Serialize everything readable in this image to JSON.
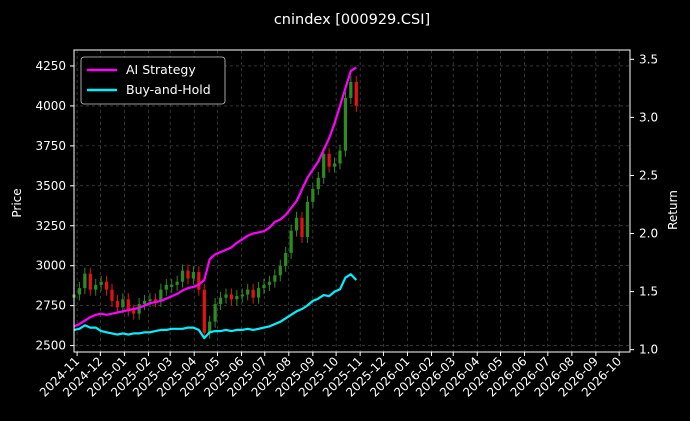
{
  "chart_data": {
    "type": "line",
    "title": "cnindex [000929.CSI]",
    "ylabel": "Price",
    "ylabel_right": "Return",
    "xlabel": "",
    "grid": true,
    "legend_position": "top-left",
    "ylim": [
      2460,
      4350
    ],
    "ylim_right": [
      0.98,
      3.58
    ],
    "yticks": [
      2500,
      2750,
      3000,
      3250,
      3500,
      3750,
      4000,
      4250
    ],
    "yticks_right": [
      1.0,
      1.5,
      2.0,
      2.5,
      3.0,
      3.5
    ],
    "xticks": [
      "2024-11",
      "2024-12",
      "2025-01",
      "2025-02",
      "2025-03",
      "2025-04",
      "2025-05",
      "2025-06",
      "2025-07",
      "2025-08",
      "2025-09",
      "2025-10",
      "2025-11",
      "2025-12",
      "2026-01",
      "2026-02",
      "2026-03",
      "2026-04",
      "2026-05",
      "2026-06",
      "2026-07",
      "2026-08",
      "2026-09",
      "2026-10"
    ],
    "colors": {
      "up": "#2e8b20",
      "down": "#e01414",
      "ai": "#ff00ff",
      "bh": "#00f0ff",
      "grid": "#555555"
    },
    "price": {
      "name": "Price",
      "x": [
        "2024-10-28",
        "2024-11-04",
        "2024-11-11",
        "2024-11-18",
        "2024-11-25",
        "2024-12-02",
        "2024-12-09",
        "2024-12-16",
        "2024-12-23",
        "2024-12-30",
        "2025-01-06",
        "2025-01-13",
        "2025-01-20",
        "2025-01-27",
        "2025-02-03",
        "2025-02-10",
        "2025-02-17",
        "2025-02-24",
        "2025-03-03",
        "2025-03-10",
        "2025-03-17",
        "2025-03-24",
        "2025-03-31",
        "2025-04-07",
        "2025-04-14",
        "2025-04-21",
        "2025-04-28",
        "2025-05-05",
        "2025-05-12",
        "2025-05-19",
        "2025-05-26",
        "2025-06-02",
        "2025-06-09",
        "2025-06-16",
        "2025-06-23",
        "2025-06-30",
        "2025-07-07",
        "2025-07-14",
        "2025-07-21",
        "2025-07-28",
        "2025-08-04",
        "2025-08-11",
        "2025-08-18",
        "2025-08-25",
        "2025-09-01",
        "2025-09-08",
        "2025-09-15",
        "2025-09-22",
        "2025-09-29",
        "2025-10-06",
        "2025-10-13",
        "2025-10-20",
        "2025-10-27"
      ],
      "values": [
        2820,
        2860,
        2950,
        2850,
        2880,
        2900,
        2850,
        2780,
        2740,
        2790,
        2720,
        2700,
        2760,
        2780,
        2790,
        2780,
        2850,
        2880,
        2880,
        2900,
        2970,
        2920,
        2960,
        2850,
        2580,
        2650,
        2760,
        2800,
        2820,
        2790,
        2810,
        2820,
        2850,
        2800,
        2860,
        2880,
        2900,
        2940,
        3000,
        3080,
        3220,
        3300,
        3180,
        3400,
        3480,
        3550,
        3700,
        3620,
        3640,
        3720,
        4050,
        4150,
        4000
      ]
    },
    "series": [
      {
        "name": "AI Strategy",
        "x": [
          "2024-10-28",
          "2024-11-04",
          "2024-11-11",
          "2024-11-18",
          "2024-11-25",
          "2024-12-02",
          "2024-12-09",
          "2024-12-16",
          "2024-12-23",
          "2024-12-30",
          "2025-01-06",
          "2025-01-13",
          "2025-01-20",
          "2025-01-27",
          "2025-02-03",
          "2025-02-10",
          "2025-02-17",
          "2025-02-24",
          "2025-03-03",
          "2025-03-10",
          "2025-03-17",
          "2025-03-24",
          "2025-03-31",
          "2025-04-07",
          "2025-04-14",
          "2025-04-21",
          "2025-04-28",
          "2025-05-05",
          "2025-05-12",
          "2025-05-19",
          "2025-05-26",
          "2025-06-02",
          "2025-06-09",
          "2025-06-16",
          "2025-06-23",
          "2025-06-30",
          "2025-07-07",
          "2025-07-14",
          "2025-07-21",
          "2025-07-28",
          "2025-08-04",
          "2025-08-11",
          "2025-08-18",
          "2025-08-25",
          "2025-09-01",
          "2025-09-08",
          "2025-09-15",
          "2025-09-22",
          "2025-09-29",
          "2025-10-06",
          "2025-10-13",
          "2025-10-20",
          "2025-10-27"
        ],
        "values": [
          1.2,
          1.22,
          1.25,
          1.28,
          1.3,
          1.31,
          1.3,
          1.31,
          1.32,
          1.33,
          1.34,
          1.35,
          1.36,
          1.38,
          1.4,
          1.41,
          1.42,
          1.44,
          1.46,
          1.48,
          1.51,
          1.53,
          1.54,
          1.56,
          1.6,
          1.78,
          1.82,
          1.84,
          1.86,
          1.88,
          1.92,
          1.95,
          1.98,
          2.0,
          2.01,
          2.02,
          2.05,
          2.1,
          2.12,
          2.16,
          2.22,
          2.28,
          2.38,
          2.48,
          2.55,
          2.62,
          2.72,
          2.82,
          2.95,
          3.1,
          3.25,
          3.4,
          3.43
        ]
      },
      {
        "name": "Buy-and-Hold",
        "x": [
          "2024-10-28",
          "2024-11-04",
          "2024-11-11",
          "2024-11-18",
          "2024-11-25",
          "2024-12-02",
          "2024-12-09",
          "2024-12-16",
          "2024-12-23",
          "2024-12-30",
          "2025-01-06",
          "2025-01-13",
          "2025-01-20",
          "2025-01-27",
          "2025-02-03",
          "2025-02-10",
          "2025-02-17",
          "2025-02-24",
          "2025-03-03",
          "2025-03-10",
          "2025-03-17",
          "2025-03-24",
          "2025-03-31",
          "2025-04-07",
          "2025-04-14",
          "2025-04-21",
          "2025-04-28",
          "2025-05-05",
          "2025-05-12",
          "2025-05-19",
          "2025-05-26",
          "2025-06-02",
          "2025-06-09",
          "2025-06-16",
          "2025-06-23",
          "2025-06-30",
          "2025-07-07",
          "2025-07-14",
          "2025-07-21",
          "2025-07-28",
          "2025-08-04",
          "2025-08-11",
          "2025-08-18",
          "2025-08-25",
          "2025-09-01",
          "2025-09-08",
          "2025-09-15",
          "2025-09-22",
          "2025-09-29",
          "2025-10-06",
          "2025-10-13",
          "2025-10-20",
          "2025-10-27"
        ],
        "values": [
          1.17,
          1.18,
          1.21,
          1.19,
          1.19,
          1.16,
          1.15,
          1.14,
          1.13,
          1.14,
          1.13,
          1.14,
          1.14,
          1.15,
          1.15,
          1.16,
          1.17,
          1.17,
          1.18,
          1.18,
          1.18,
          1.19,
          1.19,
          1.17,
          1.1,
          1.15,
          1.16,
          1.16,
          1.17,
          1.16,
          1.17,
          1.17,
          1.18,
          1.17,
          1.18,
          1.19,
          1.2,
          1.22,
          1.24,
          1.27,
          1.3,
          1.33,
          1.35,
          1.38,
          1.42,
          1.44,
          1.47,
          1.46,
          1.5,
          1.52,
          1.62,
          1.65,
          1.6
        ]
      }
    ]
  }
}
